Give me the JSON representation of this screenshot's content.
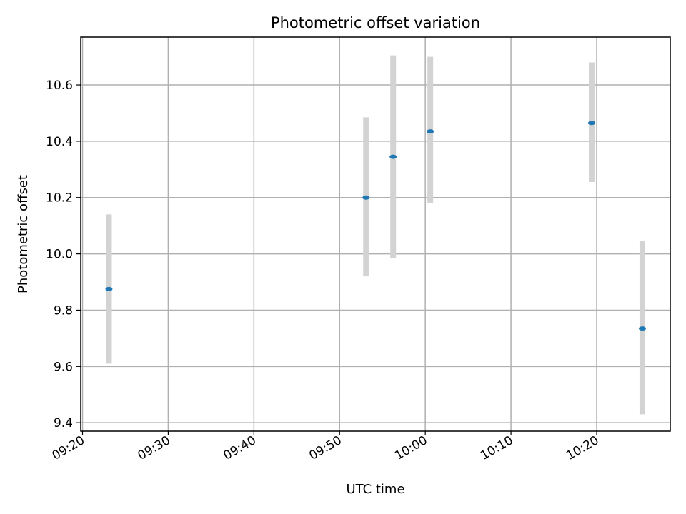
{
  "chart_data": {
    "type": "scatter",
    "title": "Photometric offset variation",
    "xlabel": "UTC time",
    "ylabel": "Photometric offset",
    "x_tick_labels": [
      "09:20",
      "09:30",
      "09:40",
      "09:50",
      "10:00",
      "10:10",
      "10:20"
    ],
    "x_tick_minutes": [
      560,
      570,
      580,
      590,
      600,
      610,
      620
    ],
    "xlim_labels": [
      "09:19.8",
      "10:28.8"
    ],
    "y_ticks": [
      9.4,
      9.6,
      9.8,
      10.0,
      10.2,
      10.4,
      10.6
    ],
    "y_tick_labels": [
      "9.4",
      "9.6",
      "9.8",
      "10.0",
      "10.2",
      "10.4",
      "10.6"
    ],
    "ylim": [
      9.37,
      10.77
    ],
    "grid": true,
    "series": [
      {
        "points": [
          {
            "time": "09:23:05",
            "y": 9.875,
            "yerr_low": 9.61,
            "yerr_high": 10.14
          },
          {
            "time": "09:53:05",
            "y": 10.2,
            "yerr_low": 9.92,
            "yerr_high": 10.485
          },
          {
            "time": "09:56:15",
            "y": 10.345,
            "yerr_low": 9.985,
            "yerr_high": 10.705
          },
          {
            "time": "10:00:35",
            "y": 10.435,
            "yerr_low": 10.18,
            "yerr_high": 10.7
          },
          {
            "time": "10:19:25",
            "y": 10.465,
            "yerr_low": 10.255,
            "yerr_high": 10.68
          },
          {
            "time": "10:25:20",
            "y": 9.735,
            "yerr_low": 9.43,
            "yerr_high": 10.045
          }
        ],
        "marker_color": "#1f77b4",
        "errorbar_color": "#d3d3d3"
      }
    ]
  }
}
